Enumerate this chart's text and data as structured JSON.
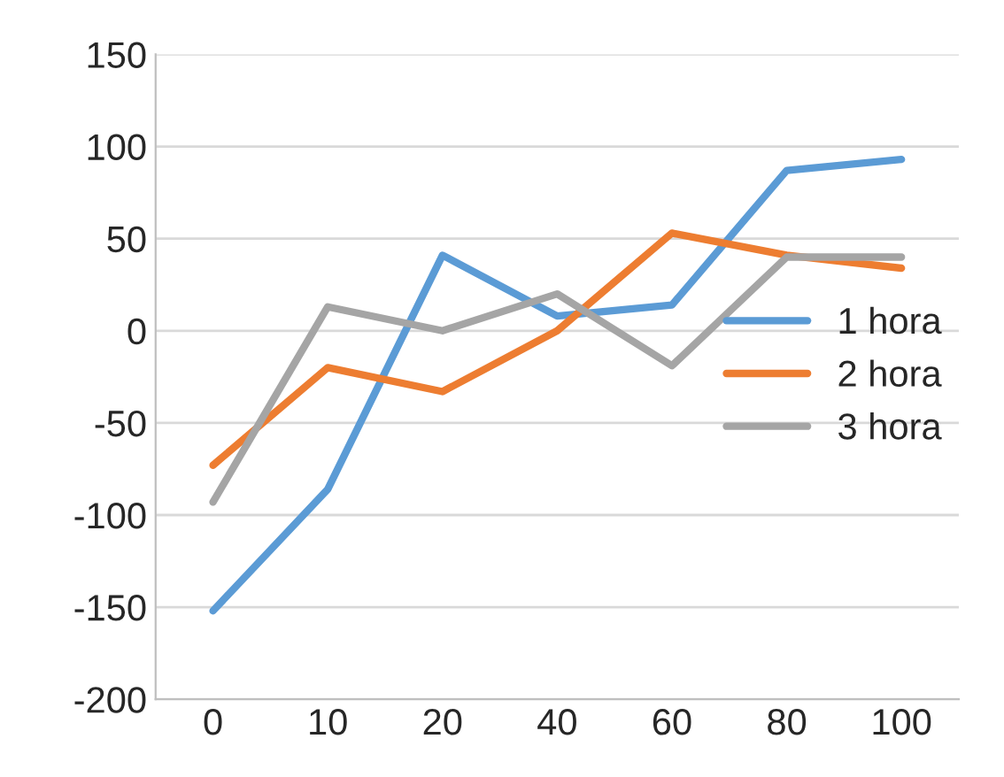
{
  "chart_data": {
    "type": "line",
    "categories": [
      "0",
      "10",
      "20",
      "40",
      "60",
      "80",
      "100"
    ],
    "series": [
      {
        "name": "1 hora",
        "color": "#5b9bd5",
        "values": [
          -152,
          -86,
          41,
          8,
          14,
          87,
          93
        ]
      },
      {
        "name": "2 hora",
        "color": "#ed7d31",
        "values": [
          -73,
          -20,
          -33,
          0,
          53,
          41,
          34
        ]
      },
      {
        "name": "3 hora",
        "color": "#a5a5a5",
        "values": [
          -93,
          13,
          0,
          20,
          -19,
          40,
          40
        ]
      }
    ],
    "ylim": [
      -200,
      150
    ],
    "yticks": [
      -200,
      -150,
      -100,
      -50,
      0,
      50,
      100,
      150
    ],
    "grid": "y",
    "legend": "right",
    "marker": "none",
    "line_style": "solid"
  }
}
